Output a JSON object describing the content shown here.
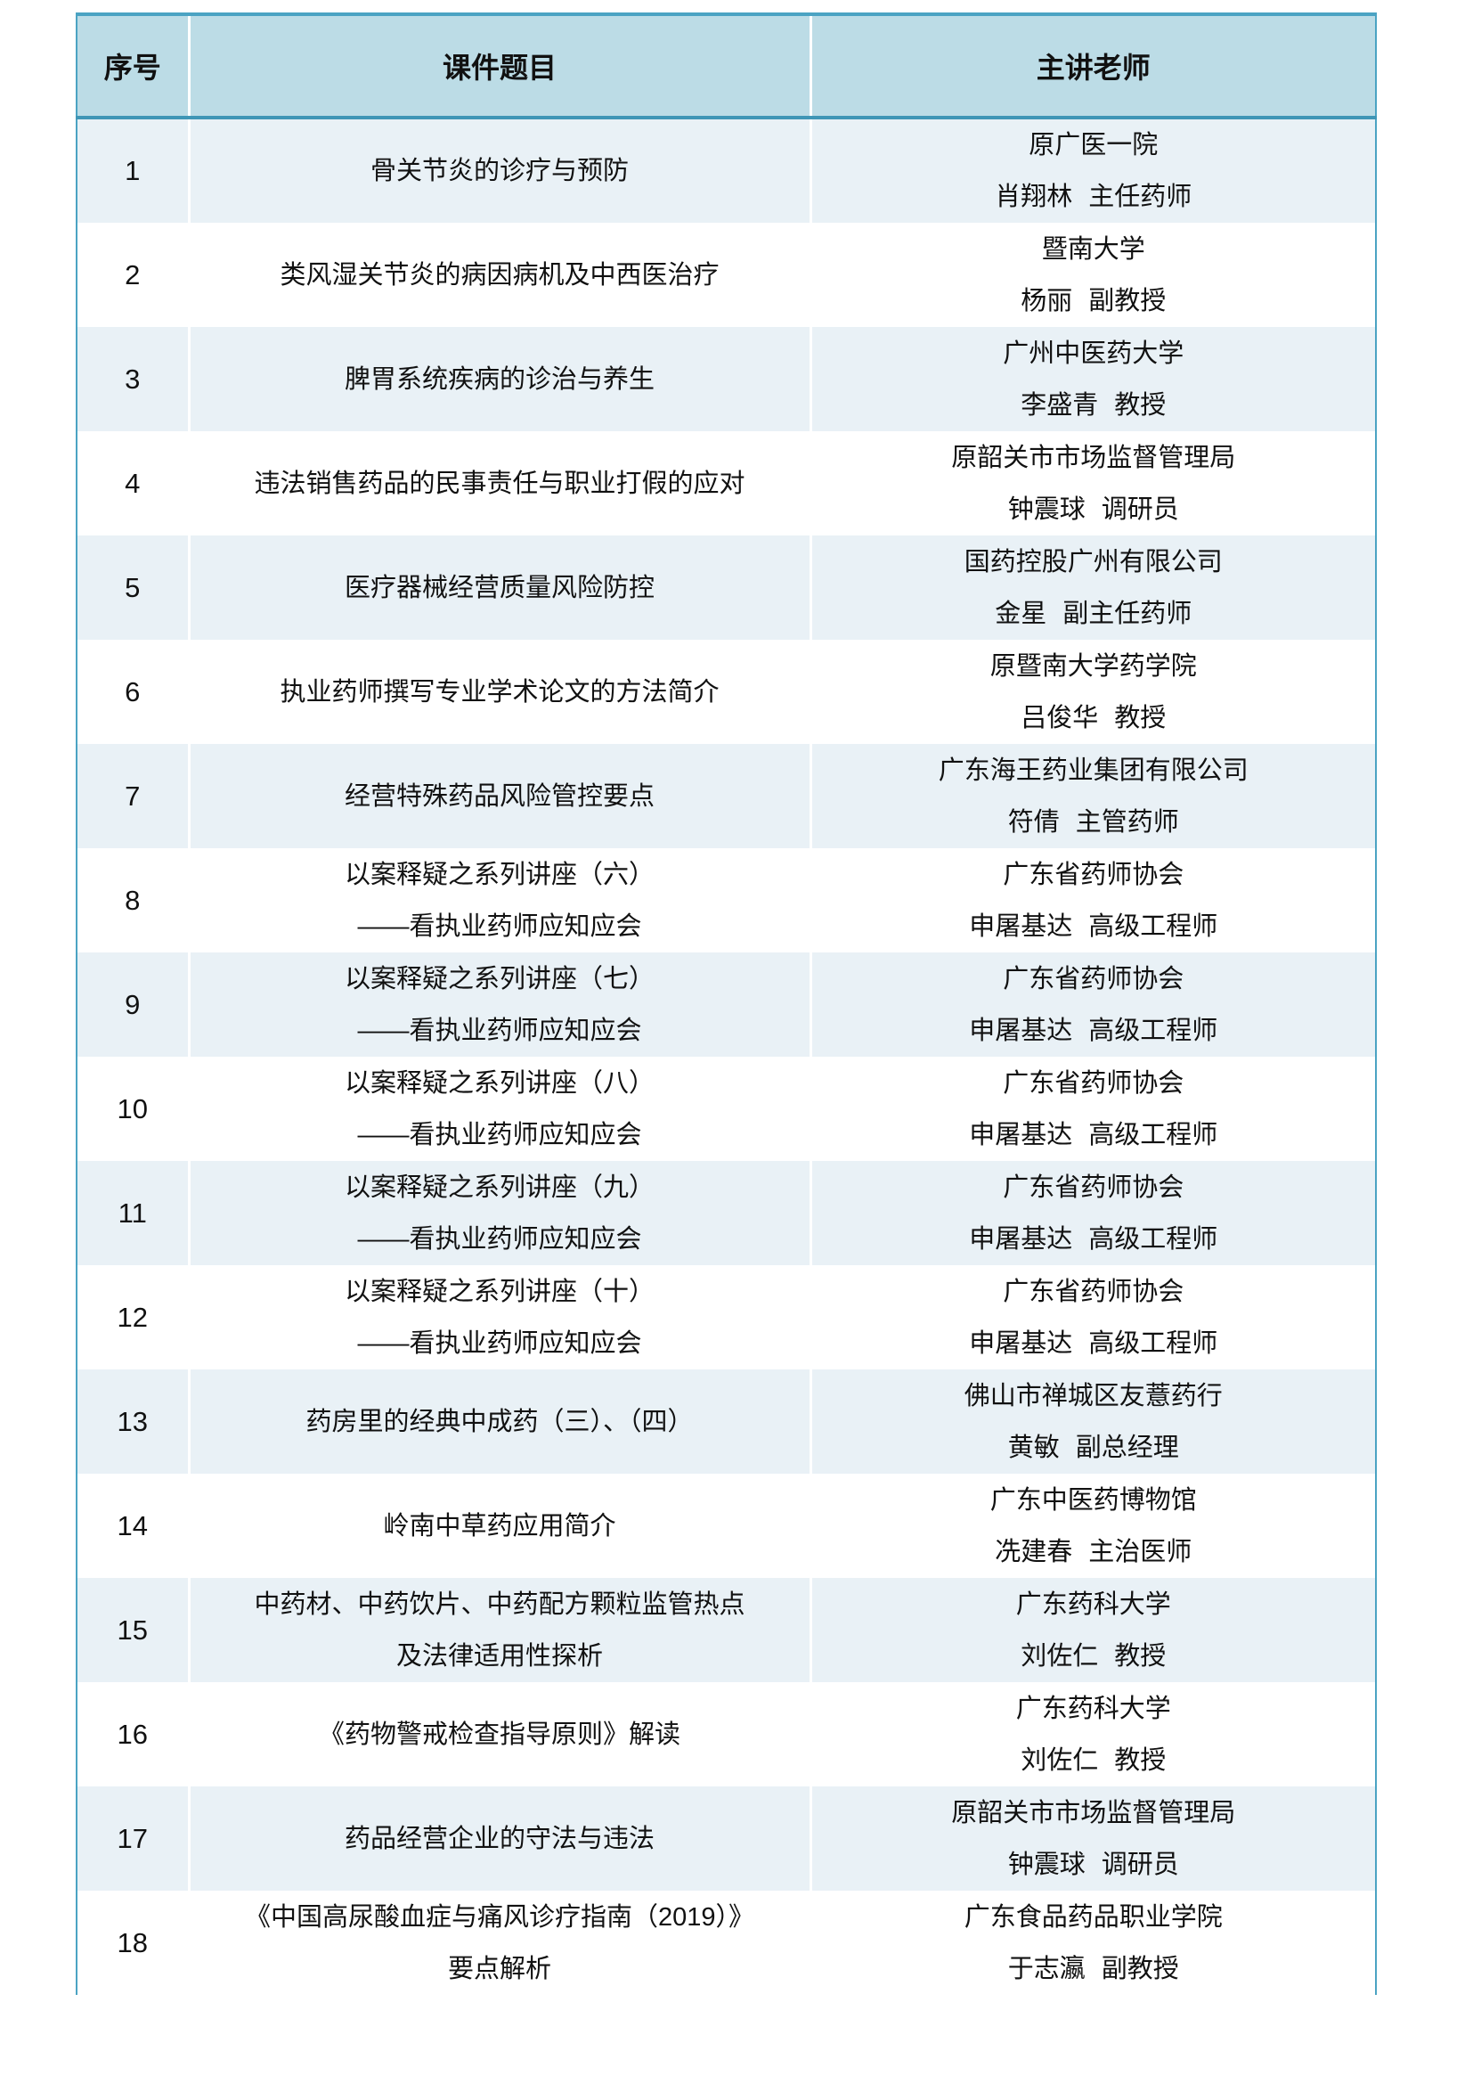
{
  "theme": {
    "border_teal": "#4ba3c3",
    "border_teal_dark": "#3f96b6",
    "header_bg": "#bcdce6",
    "band_bg": "#e9f1f6",
    "row_bg": "#ffffff",
    "text": "#111111"
  },
  "table": {
    "columns": [
      "序号",
      "课件题目",
      "主讲老师"
    ],
    "rows": [
      {
        "no": "1",
        "title": [
          "骨关节炎的诊疗与预防"
        ],
        "teacher": [
          "原广医一院",
          "肖翔林 主任药师"
        ]
      },
      {
        "no": "2",
        "title": [
          "类风湿关节炎的病因病机及中西医治疗"
        ],
        "teacher": [
          "暨南大学",
          "杨丽 副教授"
        ]
      },
      {
        "no": "3",
        "title": [
          "脾胃系统疾病的诊治与养生"
        ],
        "teacher": [
          "广州中医药大学",
          "李盛青 教授"
        ]
      },
      {
        "no": "4",
        "title": [
          "违法销售药品的民事责任与职业打假的应对"
        ],
        "teacher": [
          "原韶关市市场监督管理局",
          "钟震球 调研员"
        ]
      },
      {
        "no": "5",
        "title": [
          "医疗器械经营质量风险防控"
        ],
        "teacher": [
          "国药控股广州有限公司",
          "金星 副主任药师"
        ]
      },
      {
        "no": "6",
        "title": [
          "执业药师撰写专业学术论文的方法简介"
        ],
        "teacher": [
          "原暨南大学药学院",
          "吕俊华 教授"
        ]
      },
      {
        "no": "7",
        "title": [
          "经营特殊药品风险管控要点"
        ],
        "teacher": [
          "广东海王药业集团有限公司",
          "符倩 主管药师"
        ]
      },
      {
        "no": "8",
        "title": [
          "以案释疑之系列讲座（六）",
          "——看执业药师应知应会"
        ],
        "teacher": [
          "广东省药师协会",
          "申屠基达 高级工程师"
        ]
      },
      {
        "no": "9",
        "title": [
          "以案释疑之系列讲座（七）",
          "——看执业药师应知应会"
        ],
        "teacher": [
          "广东省药师协会",
          "申屠基达 高级工程师"
        ]
      },
      {
        "no": "10",
        "title": [
          "以案释疑之系列讲座（八）",
          "——看执业药师应知应会"
        ],
        "teacher": [
          "广东省药师协会",
          "申屠基达 高级工程师"
        ]
      },
      {
        "no": "11",
        "title": [
          "以案释疑之系列讲座（九）",
          "——看执业药师应知应会"
        ],
        "teacher": [
          "广东省药师协会",
          "申屠基达 高级工程师"
        ]
      },
      {
        "no": "12",
        "title": [
          "以案释疑之系列讲座（十）",
          "——看执业药师应知应会"
        ],
        "teacher": [
          "广东省药师协会",
          "申屠基达 高级工程师"
        ]
      },
      {
        "no": "13",
        "title": [
          "药房里的经典中成药（三）、（四）"
        ],
        "teacher": [
          "佛山市禅城区友薏药行",
          "黄敏 副总经理"
        ]
      },
      {
        "no": "14",
        "title": [
          "岭南中草药应用简介"
        ],
        "teacher": [
          "广东中医药博物馆",
          "冼建春 主治医师"
        ]
      },
      {
        "no": "15",
        "title": [
          "中药材、中药饮片、中药配方颗粒监管热点",
          "及法律适用性探析"
        ],
        "teacher": [
          "广东药科大学",
          "刘佐仁 教授"
        ]
      },
      {
        "no": "16",
        "title": [
          "《药物警戒检查指导原则》解读"
        ],
        "teacher": [
          "广东药科大学",
          "刘佐仁 教授"
        ]
      },
      {
        "no": "17",
        "title": [
          "药品经营企业的守法与违法"
        ],
        "teacher": [
          "原韶关市市场监督管理局",
          "钟震球 调研员"
        ]
      },
      {
        "no": "18",
        "title": [
          "《中国高尿酸血症与痛风诊疗指南（2019）》",
          "要点解析"
        ],
        "teacher": [
          "广东食品药品职业学院",
          "于志瀛 副教授"
        ]
      }
    ]
  }
}
